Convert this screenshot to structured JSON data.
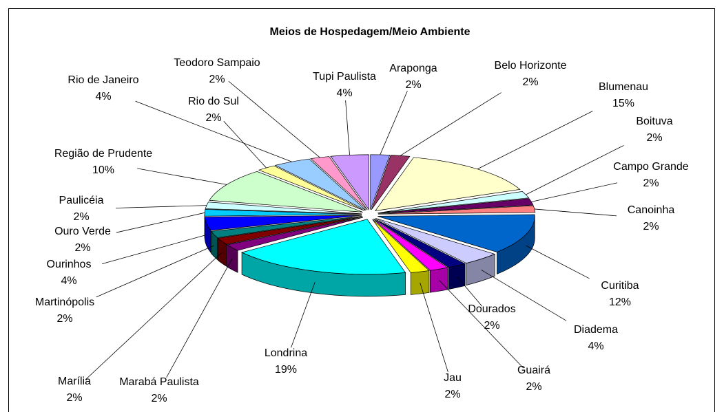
{
  "chart_data": {
    "type": "pie3d",
    "title": "Meios de Hospedagem/Meio Ambiente",
    "categories": [
      "Araponga",
      "Belo Horizonte",
      "Blumenau",
      "Boituva",
      "Campo Grande",
      "Canoinha",
      "Curitiba",
      "Diadema",
      "Dourados",
      "Guairá",
      "Jau",
      "Londrina",
      "Marabá Paulista",
      "Marília",
      "Martinópolis",
      "Ourinhos",
      "Ouro Verde",
      "Paulicéia",
      "Região de Prudente",
      "Rio do Sul",
      "Rio de Janeiro",
      "Teodoro Sampaio",
      "Tupi Paulista"
    ],
    "values": [
      2,
      2,
      15,
      2,
      2,
      2,
      12,
      4,
      2,
      2,
      2,
      19,
      2,
      2,
      2,
      4,
      2,
      2,
      10,
      2,
      4,
      2,
      4
    ],
    "value_labels": [
      "2%",
      "2%",
      "15%",
      "2%",
      "2%",
      "2%",
      "12%",
      "4%",
      "2%",
      "2%",
      "2%",
      "19%",
      "2%",
      "2%",
      "2%",
      "4%",
      "2%",
      "2%",
      "10%",
      "2%",
      "4%",
      "2%",
      "4%"
    ],
    "colors": [
      "#9999ff",
      "#993366",
      "#ffffcc",
      "#ccffff",
      "#660066",
      "#ff8080",
      "#0066cc",
      "#ccccff",
      "#000080",
      "#ff00ff",
      "#ffff00",
      "#00ffff",
      "#800080",
      "#800000",
      "#008080",
      "#0000ff",
      "#00ccff",
      "#ccffff",
      "#ccffcc",
      "#ffff99",
      "#99ccff",
      "#ff99cc",
      "#cc99ff"
    ]
  }
}
